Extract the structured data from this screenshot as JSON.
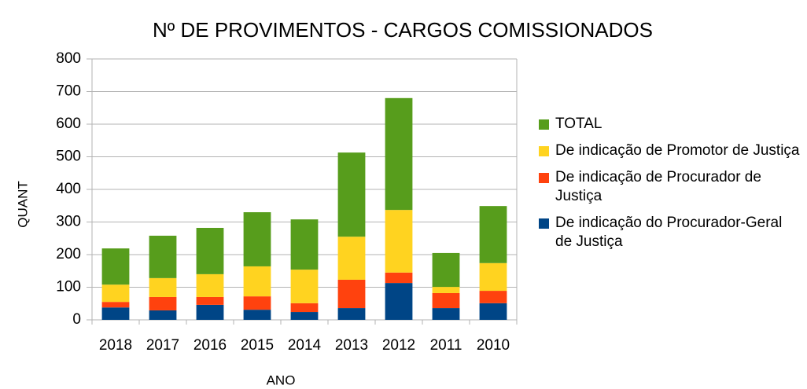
{
  "chart_data": {
    "type": "stacked_bar",
    "title": "Nº DE PROVIMENTOS - CARGOS COMISSIONADOS",
    "x_label": "ANO",
    "y_label": "QUANT",
    "categories": [
      "2018",
      "2017",
      "2016",
      "2015",
      "2014",
      "2013",
      "2012",
      "2011",
      "2010"
    ],
    "series": [
      {
        "name": "De indicação do Procurador-Geral de Justiça",
        "color": "#004586",
        "values": [
          38,
          29,
          46,
          31,
          24,
          36,
          113,
          36,
          51
        ]
      },
      {
        "name": "De indicação de Procurador de Justiça",
        "color": "#ff420e",
        "values": [
          17,
          41,
          24,
          41,
          27,
          87,
          32,
          46,
          38
        ]
      },
      {
        "name": "De indicação de Promotor de Justiça",
        "color": "#ffd320",
        "values": [
          53,
          58,
          70,
          92,
          103,
          132,
          192,
          19,
          85
        ]
      },
      {
        "name": "TOTAL",
        "color": "#579d1c",
        "values": [
          111,
          130,
          142,
          166,
          154,
          258,
          343,
          104,
          175
        ]
      }
    ],
    "ylim": [
      0,
      800
    ],
    "yticks": [
      0,
      100,
      200,
      300,
      400,
      500,
      600,
      700,
      800
    ],
    "grid": true,
    "legend": "right"
  }
}
